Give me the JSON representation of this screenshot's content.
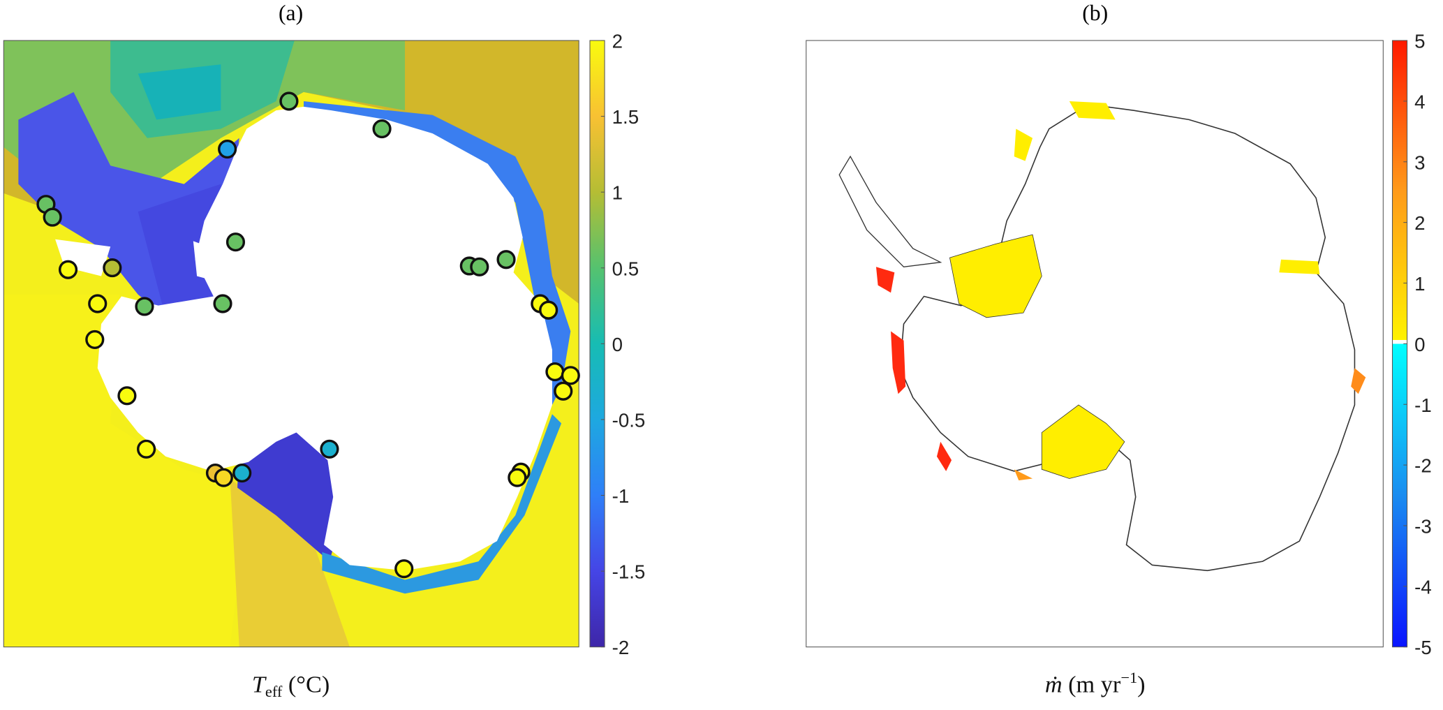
{
  "panels": [
    {
      "label": "(a)",
      "xlabel": [
        {
          "text": "T",
          "role": "italic"
        },
        {
          "text": "eff",
          "role": "sub"
        },
        {
          "text": " (°C)",
          "role": "normal"
        }
      ],
      "colorbar": {
        "lim": [
          -2,
          2
        ],
        "ticks": [
          -2,
          -1.5,
          -1,
          -0.5,
          0,
          0.5,
          1,
          1.5,
          2
        ],
        "colors": [
          "#3e26a8",
          "#4545e6",
          "#2f7ff8",
          "#1ea8e0",
          "#17bcb3",
          "#55c26f",
          "#b5bd34",
          "#f8c133",
          "#f9fb0e"
        ]
      },
      "stations": [
        0.6,
        0.6,
        -0.6,
        0.6,
        0.6,
        0.6,
        2,
        1,
        0.6,
        0.6,
        0.6,
        2,
        0.6,
        0.6,
        2,
        2,
        2,
        2,
        2,
        2,
        2,
        2,
        -0.3,
        1.4,
        1.7,
        -0.3,
        2,
        2,
        2
      ]
    },
    {
      "label": "(b)",
      "xlabel": [
        {
          "text": "ṁ",
          "role": "italic"
        },
        {
          "text": " (m yr",
          "role": "normal"
        },
        {
          "text": "−1",
          "role": "sup"
        },
        {
          "text": ")",
          "role": "normal"
        }
      ],
      "colorbar": {
        "lim": [
          -5,
          5
        ],
        "ticks": [
          -5,
          -4,
          -3,
          -2,
          -1,
          0,
          1,
          2,
          3,
          4,
          5
        ],
        "negative_colors": [
          "#0a14ff",
          "#1a8cf0",
          "#00ffff"
        ],
        "positive_colors": [
          "#fff200",
          "#ff9a1a",
          "#ff1a00"
        ]
      }
    }
  ]
}
